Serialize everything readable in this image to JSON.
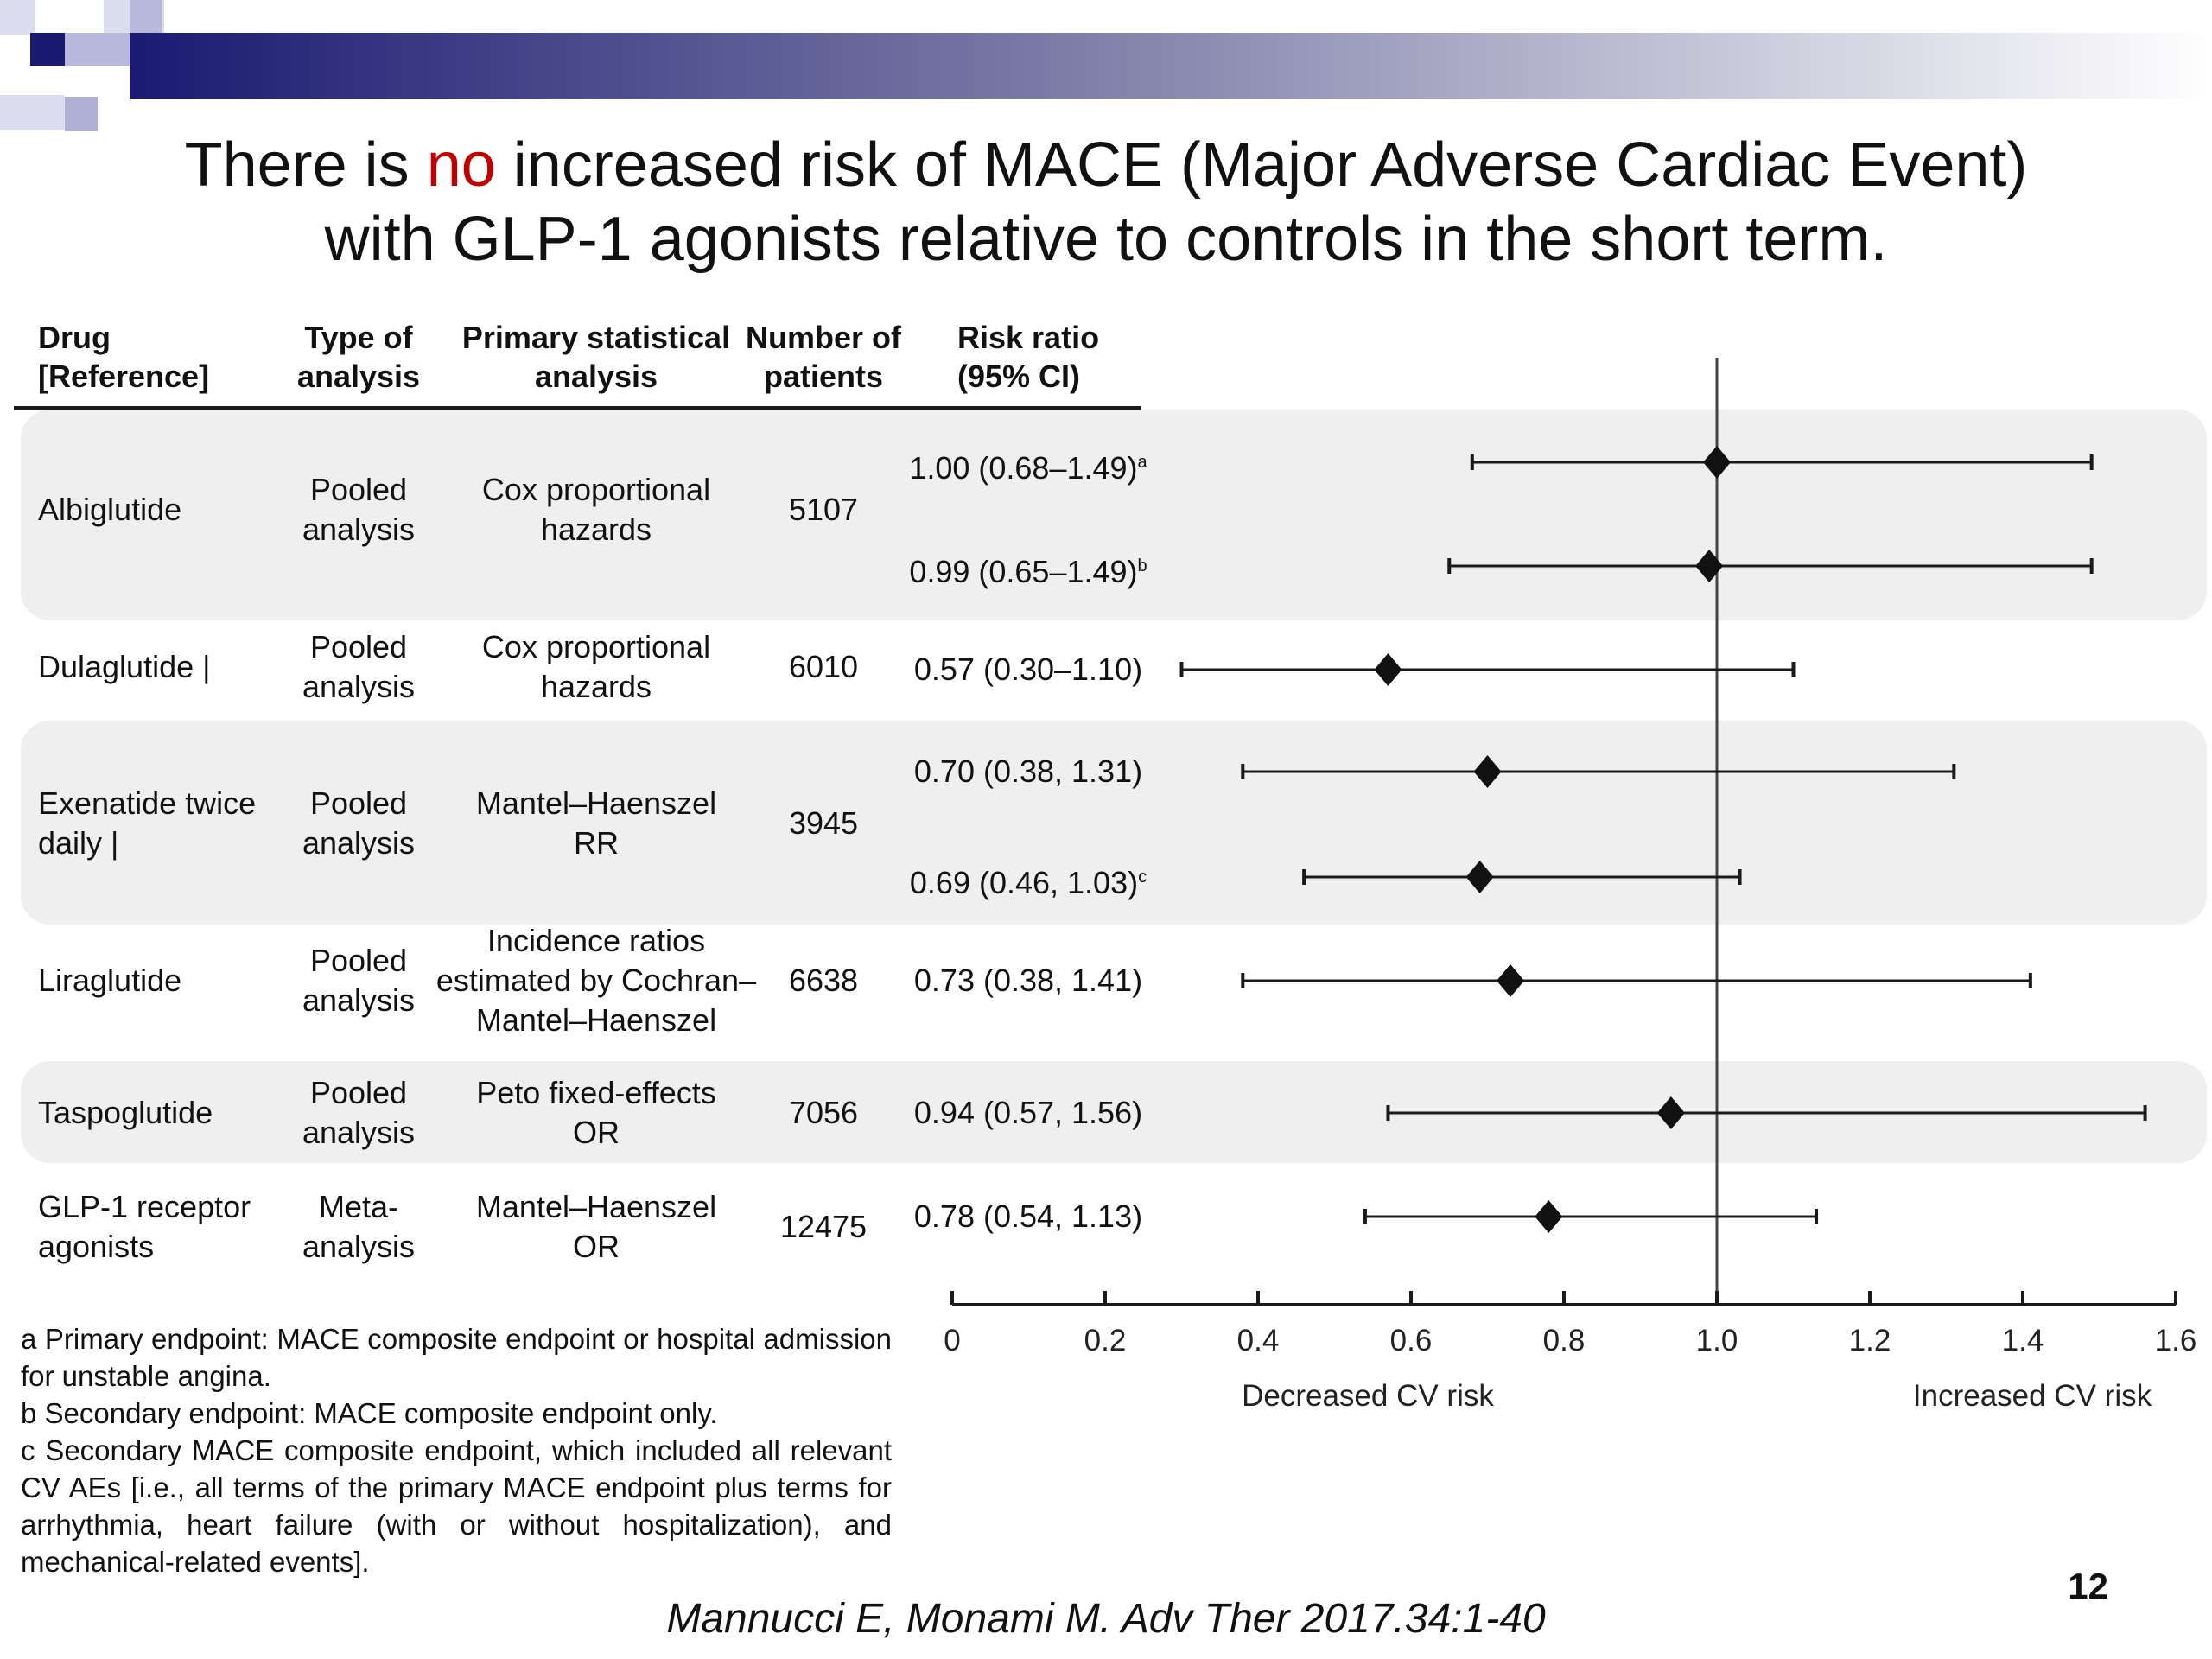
{
  "slide": {
    "title_line1_pre": "There is ",
    "title_highlight": "no",
    "title_line1_post": " increased risk of MACE (Major Adverse Cardiac Event)",
    "title_line2": "with GLP-1 agonists relative to controls in the short term.",
    "page_number": "12",
    "citation": "Mannucci E, Monami M. Adv Ther 2017.34:1-40",
    "colors": {
      "highlight": "#c00000",
      "banner": "#1e1e78",
      "band": "#efefef",
      "ink": "#1a1a1a"
    }
  },
  "table": {
    "headers": {
      "drug": [
        "Drug",
        "[Reference]"
      ],
      "type": [
        "Type of",
        "analysis"
      ],
      "stat": [
        "Primary statistical",
        "analysis"
      ],
      "n": [
        "Number of",
        "patients"
      ],
      "rr": [
        "Risk ratio",
        "(95% CI)"
      ]
    },
    "rows": [
      {
        "drug": [
          "Albiglutide"
        ],
        "type": [
          "Pooled",
          "analysis"
        ],
        "stat": [
          "Cox proportional",
          "hazards"
        ],
        "n": "5107"
      },
      {
        "drug": [
          "Dulaglutide |"
        ],
        "type": [
          "Pooled",
          "analysis"
        ],
        "stat": [
          "Cox proportional",
          "hazards"
        ],
        "n": "6010"
      },
      {
        "drug": [
          "Exenatide twice",
          "daily |"
        ],
        "type": [
          "Pooled",
          "analysis"
        ],
        "stat": [
          "Mantel–Haenszel",
          "RR"
        ],
        "n": "3945"
      },
      {
        "drug": [
          "Liraglutide"
        ],
        "type": [
          "Pooled",
          "analysis"
        ],
        "stat": [
          "Incidence ratios",
          "estimated by Cochran–",
          "Mantel–Haenszel"
        ],
        "n": "6638"
      },
      {
        "drug": [
          "Taspoglutide"
        ],
        "type": [
          "Pooled",
          "analysis"
        ],
        "stat": [
          "Peto fixed-effects",
          "OR"
        ],
        "n": "7056"
      },
      {
        "drug": [
          "GLP-1 receptor",
          "agonists"
        ],
        "type": [
          "Meta-",
          "analysis"
        ],
        "stat": [
          "Mantel–Haenszel",
          "OR"
        ],
        "n": "12475"
      }
    ]
  },
  "chart_data": {
    "type": "forest",
    "x": {
      "min": 0,
      "max": 1.6,
      "ticks": [
        "0",
        "0.2",
        "0.4",
        "0.6",
        "0.8",
        "1.0",
        "1.2",
        "1.4",
        "1.6"
      ],
      "reference_line": 1.0
    },
    "left_label": "Decreased CV risk",
    "right_label": "Increased CV risk",
    "estimates": [
      {
        "drug": "Albiglutide",
        "label": "1.00 (0.68–1.49)",
        "sup": "a",
        "point": 1.0,
        "lo": 0.68,
        "hi": 1.49
      },
      {
        "drug": "Albiglutide",
        "label": "0.99 (0.65–1.49)",
        "sup": "b",
        "point": 0.99,
        "lo": 0.65,
        "hi": 1.49
      },
      {
        "drug": "Dulaglutide",
        "label": "0.57 (0.30–1.10)",
        "sup": "",
        "point": 0.57,
        "lo": 0.3,
        "hi": 1.1
      },
      {
        "drug": "Exenatide twice daily",
        "label": "0.70 (0.38, 1.31)",
        "sup": "",
        "point": 0.7,
        "lo": 0.38,
        "hi": 1.31
      },
      {
        "drug": "Exenatide twice daily",
        "label": "0.69 (0.46, 1.03)",
        "sup": "c",
        "point": 0.69,
        "lo": 0.46,
        "hi": 1.03
      },
      {
        "drug": "Liraglutide",
        "label": "0.73 (0.38, 1.41)",
        "sup": "",
        "point": 0.73,
        "lo": 0.38,
        "hi": 1.41
      },
      {
        "drug": "Taspoglutide",
        "label": "0.94 (0.57, 1.56)",
        "sup": "",
        "point": 0.94,
        "lo": 0.57,
        "hi": 1.56
      },
      {
        "drug": "GLP-1 receptor agonists",
        "label": "0.78 (0.54, 1.13)",
        "sup": "",
        "point": 0.78,
        "lo": 0.54,
        "hi": 1.13
      }
    ]
  },
  "footnotes": [
    {
      "text": "a Primary endpoint: MACE composite endpoint or hospital admission for unstable angina."
    },
    {
      "text": "b Secondary endpoint: MACE composite endpoint only."
    },
    {
      "text": "c Secondary MACE composite endpoint, which included all relevant CV AEs [i.e., all terms of the primary MACE endpoint plus terms for arrhythmia, heart failure (with or without hospitalization), and mechanical-related events]."
    }
  ]
}
